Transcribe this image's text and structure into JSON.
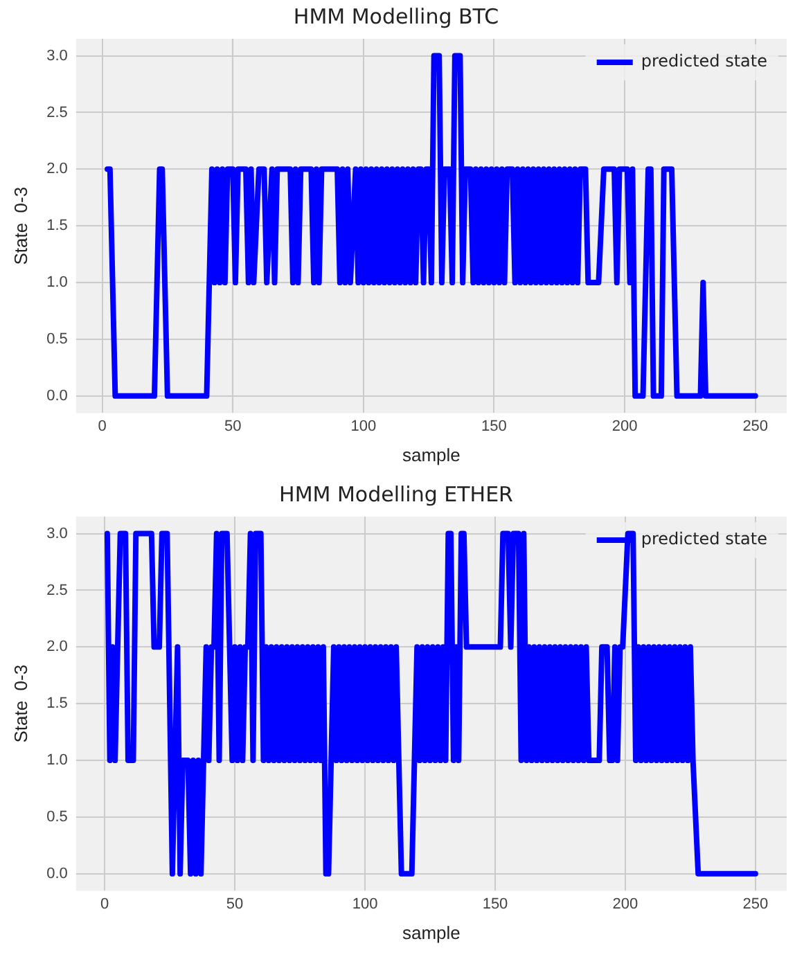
{
  "chart_data": [
    {
      "type": "line",
      "title": "HMM Modelling BTC",
      "xlabel": "sample",
      "ylabel": "State  0-3",
      "legend": "top right",
      "grid": true,
      "line_style": "solid",
      "marker": "none",
      "xlim": [
        -10,
        262
      ],
      "xticks": [
        0,
        50,
        100,
        150,
        200,
        250
      ],
      "ylim": [
        -0.15,
        3.15
      ],
      "yticks": [
        {
          "value": 0,
          "label": "0.0"
        },
        {
          "value": 0.5,
          "label": "0.5"
        },
        {
          "value": 1,
          "label": "1.0"
        },
        {
          "value": 1.5,
          "label": "1.5"
        },
        {
          "value": 2,
          "label": "2.0"
        },
        {
          "value": 2.5,
          "label": "2.5"
        },
        {
          "value": 3,
          "label": "3.0"
        }
      ],
      "series": [
        {
          "name": "predicted state",
          "color": "#0000ff",
          "x": [
            2,
            3,
            5,
            20,
            22,
            23,
            25,
            40,
            42,
            43,
            44,
            45,
            46,
            47,
            48,
            50,
            51,
            52,
            55,
            56,
            57,
            58,
            60,
            62,
            63,
            65,
            66,
            67,
            72,
            73,
            74,
            75,
            76,
            80,
            81,
            82,
            83,
            84,
            90,
            91,
            92,
            93,
            94,
            95,
            97,
            98,
            99,
            100,
            101,
            102,
            103,
            104,
            105,
            106,
            107,
            108,
            109,
            110,
            111,
            112,
            113,
            114,
            115,
            116,
            117,
            118,
            119,
            120,
            121,
            122,
            123,
            124,
            125,
            126,
            127,
            129,
            130,
            131,
            133,
            134,
            135,
            137,
            138,
            139,
            141,
            142,
            143,
            144,
            145,
            146,
            147,
            148,
            149,
            150,
            151,
            152,
            153,
            154,
            155,
            157,
            158,
            159,
            160,
            161,
            162,
            163,
            164,
            165,
            166,
            167,
            168,
            169,
            170,
            171,
            172,
            173,
            174,
            175,
            176,
            177,
            178,
            179,
            180,
            181,
            182,
            183,
            185,
            186,
            190,
            192,
            196,
            197,
            198,
            201,
            202,
            203,
            204,
            207,
            209,
            210,
            211,
            214,
            215,
            218,
            220,
            229,
            230,
            231,
            250
          ],
          "values": [
            2,
            2,
            0,
            0,
            2,
            2,
            0,
            0,
            2,
            1,
            2,
            1,
            2,
            1,
            2,
            2,
            1,
            2,
            2,
            1,
            2,
            1,
            2,
            2,
            1,
            2,
            1,
            2,
            2,
            1,
            2,
            1,
            2,
            2,
            1,
            2,
            1,
            2,
            2,
            1,
            2,
            1,
            2,
            1,
            2,
            1,
            2,
            1,
            2,
            1,
            2,
            1,
            2,
            1,
            2,
            1,
            2,
            1,
            2,
            1,
            2,
            1,
            2,
            1,
            2,
            1,
            2,
            1,
            2,
            2,
            1,
            2,
            2,
            1,
            3,
            3,
            1,
            2,
            2,
            1,
            3,
            3,
            1,
            2,
            2,
            1,
            2,
            1,
            2,
            1,
            2,
            1,
            2,
            1,
            2,
            1,
            2,
            1,
            2,
            2,
            1,
            2,
            1,
            2,
            1,
            2,
            1,
            2,
            1,
            2,
            1,
            2,
            1,
            2,
            1,
            2,
            1,
            2,
            1,
            2,
            1,
            2,
            1,
            2,
            1,
            2,
            2,
            1,
            1,
            2,
            2,
            1,
            2,
            2,
            1,
            2,
            0,
            0,
            2,
            2,
            0,
            0,
            2,
            2,
            0,
            0,
            1,
            0,
            0
          ]
        }
      ]
    },
    {
      "type": "line",
      "title": "HMM Modelling ETHER",
      "xlabel": "sample",
      "ylabel": "State  0-3",
      "legend": "top right",
      "grid": true,
      "line_style": "solid",
      "marker": "none",
      "xlim": [
        -11,
        262
      ],
      "xticks": [
        0,
        50,
        100,
        150,
        200,
        250
      ],
      "ylim": [
        -0.15,
        3.15
      ],
      "yticks": [
        {
          "value": 0,
          "label": "0.0"
        },
        {
          "value": 0.5,
          "label": "0.5"
        },
        {
          "value": 1,
          "label": "1.0"
        },
        {
          "value": 1.5,
          "label": "1.5"
        },
        {
          "value": 2,
          "label": "2.0"
        },
        {
          "value": 2.5,
          "label": "2.5"
        },
        {
          "value": 3,
          "label": "3.0"
        }
      ],
      "series": [
        {
          "name": "predicted state",
          "color": "#0000ff",
          "x": [
            1,
            2,
            3,
            4,
            6,
            8,
            9,
            11,
            12,
            14,
            16,
            18,
            19,
            21,
            22,
            24,
            26,
            28,
            29,
            30,
            32,
            33,
            34,
            35,
            36,
            37,
            38,
            39,
            40,
            41,
            42,
            43,
            44,
            45,
            47,
            48,
            49,
            50,
            51,
            52,
            53,
            54,
            55,
            56,
            57,
            58,
            60,
            61,
            62,
            63,
            64,
            65,
            66,
            67,
            68,
            69,
            70,
            71,
            72,
            73,
            74,
            75,
            76,
            77,
            78,
            79,
            80,
            81,
            82,
            83,
            84,
            85,
            86,
            87,
            88,
            89,
            90,
            91,
            92,
            93,
            94,
            95,
            96,
            97,
            98,
            99,
            100,
            101,
            102,
            103,
            104,
            105,
            106,
            107,
            108,
            109,
            110,
            111,
            112,
            113,
            114,
            118,
            119,
            120,
            121,
            122,
            123,
            124,
            125,
            126,
            127,
            128,
            129,
            130,
            131,
            132,
            133,
            134,
            135,
            136,
            137,
            138,
            139,
            152,
            153,
            155,
            156,
            157,
            159,
            160,
            161,
            162,
            163,
            164,
            165,
            166,
            167,
            168,
            169,
            170,
            171,
            172,
            173,
            174,
            175,
            176,
            177,
            178,
            179,
            180,
            181,
            182,
            183,
            184,
            185,
            186,
            190,
            191,
            193,
            194,
            195,
            196,
            197,
            198,
            199,
            201,
            203,
            204,
            205,
            206,
            207,
            208,
            209,
            210,
            211,
            212,
            213,
            214,
            215,
            216,
            217,
            218,
            219,
            220,
            221,
            222,
            223,
            224,
            225,
            226,
            228,
            250
          ],
          "values": [
            3,
            1,
            2,
            1,
            3,
            3,
            1,
            1,
            3,
            3,
            3,
            3,
            2,
            2,
            3,
            3,
            0,
            2,
            0,
            1,
            1,
            0,
            1,
            0,
            1,
            0,
            1,
            2,
            1,
            2,
            2,
            3,
            1,
            3,
            3,
            2,
            1,
            2,
            1,
            2,
            1,
            2,
            2,
            3,
            1,
            3,
            3,
            1,
            2,
            1,
            2,
            1,
            2,
            1,
            2,
            1,
            2,
            1,
            2,
            1,
            2,
            1,
            2,
            1,
            2,
            1,
            2,
            1,
            2,
            1,
            2,
            0,
            0,
            1,
            2,
            1,
            2,
            1,
            2,
            1,
            2,
            1,
            2,
            1,
            2,
            1,
            2,
            1,
            2,
            1,
            2,
            1,
            2,
            1,
            2,
            1,
            2,
            1,
            2,
            1,
            0,
            0,
            1,
            2,
            1,
            2,
            1,
            2,
            1,
            2,
            1,
            2,
            1,
            2,
            1,
            3,
            3,
            1,
            2,
            1,
            3,
            3,
            2,
            2,
            3,
            3,
            2,
            3,
            3,
            1,
            3,
            1,
            2,
            1,
            2,
            1,
            2,
            1,
            2,
            1,
            2,
            1,
            2,
            1,
            2,
            1,
            2,
            1,
            2,
            1,
            2,
            1,
            2,
            1,
            2,
            1,
            1,
            2,
            2,
            1,
            1,
            2,
            1,
            2,
            2,
            3,
            3,
            1,
            2,
            1,
            2,
            1,
            2,
            1,
            2,
            1,
            2,
            1,
            2,
            1,
            2,
            1,
            2,
            1,
            2,
            1,
            2,
            1,
            2,
            1,
            0,
            0
          ]
        }
      ]
    }
  ]
}
